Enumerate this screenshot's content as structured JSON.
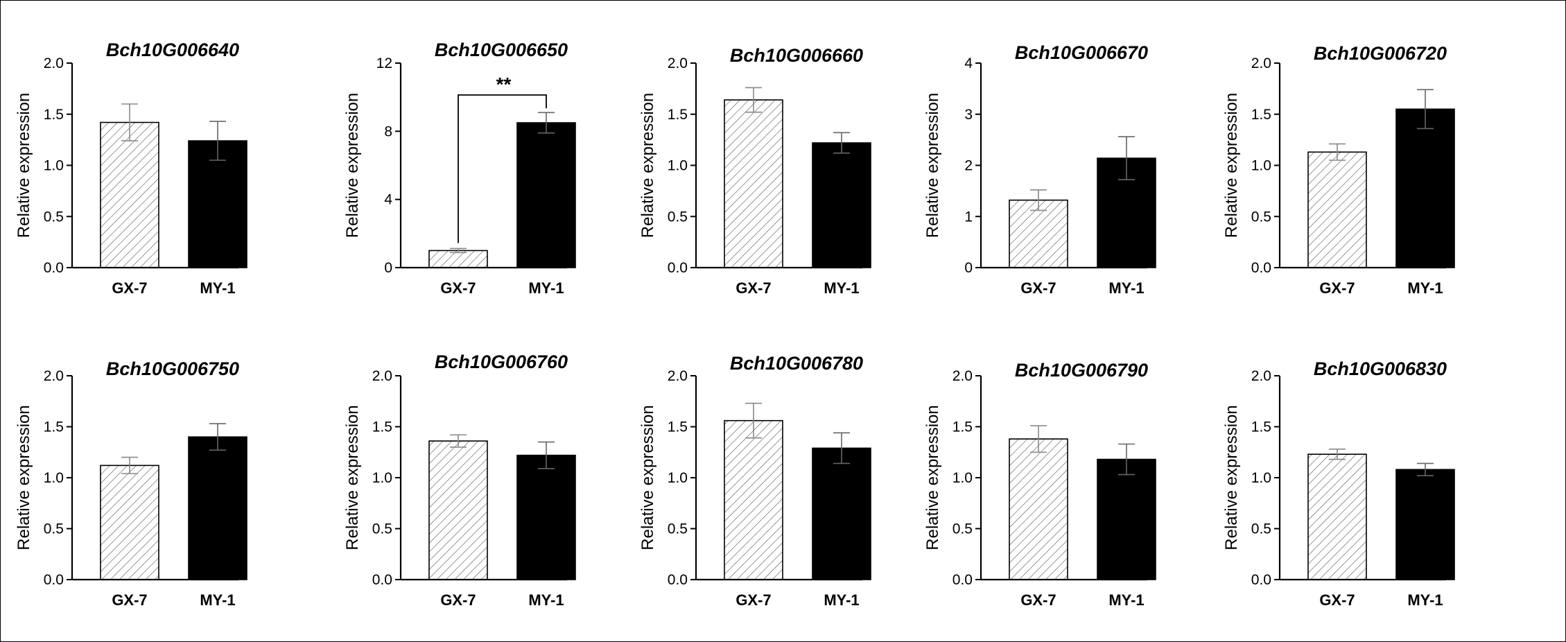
{
  "chart_data": [
    {
      "type": "bar",
      "title": "Bch10G006640",
      "ylabel": "Relative expression",
      "categories": [
        "GX-7",
        "MY-1"
      ],
      "values": [
        1.42,
        1.24
      ],
      "errors": [
        0.18,
        0.19
      ],
      "ylim": [
        0,
        2.0
      ],
      "yticks": [
        "0.0",
        "0.5",
        "1.0",
        "1.5",
        "2.0"
      ],
      "significance": ""
    },
    {
      "type": "bar",
      "title": "Bch10G006650",
      "ylabel": "Relative expression",
      "categories": [
        "GX-7",
        "MY-1"
      ],
      "values": [
        1.0,
        8.5
      ],
      "errors": [
        0.12,
        0.6
      ],
      "ylim": [
        0,
        12
      ],
      "yticks": [
        "0",
        "4",
        "8",
        "12"
      ],
      "significance": "**"
    },
    {
      "type": "bar",
      "title": "Bch10G006660",
      "ylabel": "Relative expression",
      "categories": [
        "GX-7",
        "MY-1"
      ],
      "values": [
        1.64,
        1.22
      ],
      "errors": [
        0.12,
        0.1
      ],
      "ylim": [
        0,
        2.0
      ],
      "yticks": [
        "0.0",
        "0.5",
        "1.0",
        "1.5",
        "2.0"
      ],
      "significance": ""
    },
    {
      "type": "bar",
      "title": "Bch10G006670",
      "ylabel": "Relative expression",
      "categories": [
        "GX-7",
        "MY-1"
      ],
      "values": [
        1.32,
        2.14
      ],
      "errors": [
        0.2,
        0.42
      ],
      "ylim": [
        0,
        4
      ],
      "yticks": [
        "0",
        "1",
        "2",
        "3",
        "4"
      ],
      "significance": ""
    },
    {
      "type": "bar",
      "title": "Bch10G006720",
      "ylabel": "Relative expression",
      "categories": [
        "GX-7",
        "MY-1"
      ],
      "values": [
        1.13,
        1.55
      ],
      "errors": [
        0.08,
        0.19
      ],
      "ylim": [
        0,
        2.0
      ],
      "yticks": [
        "0.0",
        "0.5",
        "1.0",
        "1.5",
        "2.0"
      ],
      "significance": ""
    },
    {
      "type": "bar",
      "title": "Bch10G006750",
      "ylabel": "Relative expression",
      "categories": [
        "GX-7",
        "MY-1"
      ],
      "values": [
        1.12,
        1.4
      ],
      "errors": [
        0.08,
        0.13
      ],
      "ylim": [
        0,
        2.0
      ],
      "yticks": [
        "0.0",
        "0.5",
        "1.0",
        "1.5",
        "2.0"
      ],
      "significance": ""
    },
    {
      "type": "bar",
      "title": "Bch10G006760",
      "ylabel": "Relative expression",
      "categories": [
        "GX-7",
        "MY-1"
      ],
      "values": [
        1.36,
        1.22
      ],
      "errors": [
        0.06,
        0.13
      ],
      "ylim": [
        0,
        2.0
      ],
      "yticks": [
        "0.0",
        "0.5",
        "1.0",
        "1.5",
        "2.0"
      ],
      "significance": ""
    },
    {
      "type": "bar",
      "title": "Bch10G006780",
      "ylabel": "Relative expression",
      "categories": [
        "GX-7",
        "MY-1"
      ],
      "values": [
        1.56,
        1.29
      ],
      "errors": [
        0.17,
        0.15
      ],
      "ylim": [
        0,
        2.0
      ],
      "yticks": [
        "0.0",
        "0.5",
        "1.0",
        "1.5",
        "2.0"
      ],
      "significance": ""
    },
    {
      "type": "bar",
      "title": "Bch10G006790",
      "ylabel": "Relative expression",
      "categories": [
        "GX-7",
        "MY-1"
      ],
      "values": [
        1.38,
        1.18
      ],
      "errors": [
        0.13,
        0.15
      ],
      "ylim": [
        0,
        2.0
      ],
      "yticks": [
        "0.0",
        "0.5",
        "1.0",
        "1.5",
        "2.0"
      ],
      "significance": ""
    },
    {
      "type": "bar",
      "title": "Bch10G006830",
      "ylabel": "Relative expression",
      "categories": [
        "GX-7",
        "MY-1"
      ],
      "values": [
        1.23,
        1.08
      ],
      "errors": [
        0.05,
        0.06
      ],
      "ylim": [
        0,
        2.0
      ],
      "yticks": [
        "0.0",
        "0.5",
        "1.0",
        "1.5",
        "2.0"
      ],
      "significance": ""
    }
  ],
  "styles": {
    "bar_fills": [
      "hatched",
      "#000000"
    ],
    "grid": false,
    "legend": "none"
  }
}
